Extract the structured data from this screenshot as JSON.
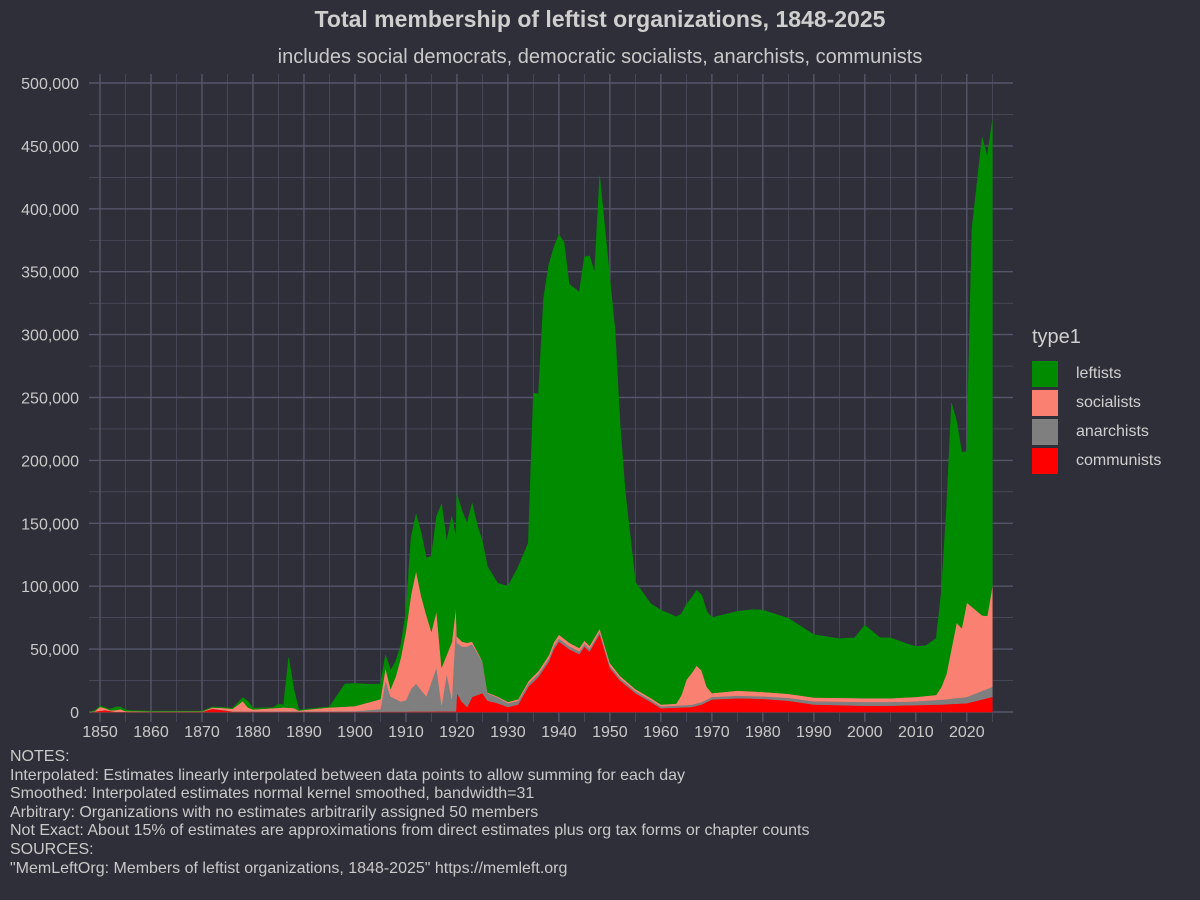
{
  "title": "Total membership of leftist organizations, 1848-2025",
  "subtitle": "includes social democrats, democratic socialists, anarchists, communists",
  "colors": {
    "background": "#2e2f38",
    "grid": "#55566a",
    "leftists": "#008b00",
    "socialists": "#fa8072",
    "anarchists": "#7f7f7f",
    "communists": "#ff0000"
  },
  "legend": {
    "title": "type1",
    "items": [
      {
        "label": "leftists",
        "color": "#008b00"
      },
      {
        "label": "socialists",
        "color": "#fa8072"
      },
      {
        "label": "anarchists",
        "color": "#7f7f7f"
      },
      {
        "label": "communists",
        "color": "#ff0000"
      }
    ]
  },
  "notes": [
    "NOTES:",
    "Interpolated: Estimates linearly interpolated between data points to allow summing for each day",
    "Smoothed: Interpolated estimates normal kernel smoothed, bandwidth=31",
    "Arbitrary: Organizations with no estimates arbitrarily assigned 50 members",
    "Not Exact: About 15% of estimates are approximations from direct estimates plus org tax forms or chapter counts",
    "SOURCES:",
    "\"MemLeftOrg: Members of leftist organizations, 1848-2025\" https://memleft.org"
  ],
  "chart_data": {
    "type": "area",
    "stacked": true,
    "title": "Total membership of leftist organizations, 1848-2025",
    "subtitle": "includes social democrats, democratic socialists, anarchists, communists",
    "xlim": [
      1848,
      2025
    ],
    "ylim": [
      0,
      500000
    ],
    "x_ticks": [
      1850,
      1860,
      1870,
      1880,
      1890,
      1900,
      1910,
      1920,
      1930,
      1940,
      1950,
      1960,
      1970,
      1980,
      1990,
      2000,
      2010,
      2020
    ],
    "y_ticks": [
      0,
      50000,
      100000,
      150000,
      200000,
      250000,
      300000,
      350000,
      400000,
      450000,
      500000
    ],
    "y_tick_labels": [
      "0",
      "50,000",
      "100,000",
      "150,000",
      "200,000",
      "250,000",
      "300,000",
      "350,000",
      "400,000",
      "450,000",
      "500,000"
    ],
    "grid": true,
    "legend_placement": "right",
    "series_order_bottom_to_top": [
      "communists",
      "anarchists",
      "socialists",
      "leftists"
    ],
    "series": [
      {
        "name": "communists",
        "points": [
          [
            1848,
            0
          ],
          [
            1850,
            1000
          ],
          [
            1851,
            1500
          ],
          [
            1852,
            800
          ],
          [
            1853,
            200
          ],
          [
            1856,
            100
          ],
          [
            1870,
            100
          ],
          [
            1872,
            2500
          ],
          [
            1874,
            1500
          ],
          [
            1876,
            300
          ],
          [
            1900,
            200
          ],
          [
            1919.8,
            500
          ],
          [
            1920,
            15000
          ],
          [
            1921,
            8000
          ],
          [
            1922,
            4000
          ],
          [
            1923,
            12000
          ],
          [
            1925,
            15000
          ],
          [
            1926,
            9000
          ],
          [
            1928,
            7000
          ],
          [
            1930,
            4000
          ],
          [
            1932,
            6000
          ],
          [
            1934,
            20000
          ],
          [
            1936,
            28000
          ],
          [
            1938,
            40000
          ],
          [
            1939,
            50000
          ],
          [
            1940,
            56000
          ],
          [
            1942,
            50000
          ],
          [
            1944,
            46000
          ],
          [
            1945,
            52000
          ],
          [
            1946,
            48000
          ],
          [
            1948,
            62000
          ],
          [
            1950,
            35000
          ],
          [
            1952,
            25000
          ],
          [
            1955,
            15000
          ],
          [
            1958,
            8000
          ],
          [
            1960,
            3000
          ],
          [
            1963,
            3500
          ],
          [
            1966,
            4000
          ],
          [
            1968,
            6000
          ],
          [
            1970,
            10000
          ],
          [
            1975,
            11000
          ],
          [
            1980,
            10500
          ],
          [
            1985,
            9000
          ],
          [
            1990,
            6000
          ],
          [
            1995,
            5500
          ],
          [
            2000,
            5000
          ],
          [
            2005,
            5000
          ],
          [
            2010,
            5500
          ],
          [
            2015,
            6000
          ],
          [
            2020,
            7000
          ],
          [
            2023,
            10000
          ],
          [
            2025,
            12000
          ]
        ]
      },
      {
        "name": "anarchists",
        "points": [
          [
            1848,
            0
          ],
          [
            1900,
            500
          ],
          [
            1905,
            2000
          ],
          [
            1906,
            25000
          ],
          [
            1907,
            12000
          ],
          [
            1909,
            8000
          ],
          [
            1910,
            9000
          ],
          [
            1911,
            18000
          ],
          [
            1912,
            22000
          ],
          [
            1914,
            12000
          ],
          [
            1916,
            35000
          ],
          [
            1917,
            5000
          ],
          [
            1918,
            30000
          ],
          [
            1919,
            10000
          ],
          [
            1919.8,
            70000
          ],
          [
            1920,
            40000
          ],
          [
            1922,
            48000
          ],
          [
            1923,
            42000
          ],
          [
            1925,
            25000
          ],
          [
            1926,
            6000
          ],
          [
            1930,
            3000
          ],
          [
            1935,
            2500
          ],
          [
            1940,
            2500
          ],
          [
            1950,
            2000
          ],
          [
            1960,
            1500
          ],
          [
            1970,
            2000
          ],
          [
            1980,
            2000
          ],
          [
            1990,
            2500
          ],
          [
            2000,
            3000
          ],
          [
            2010,
            3000
          ],
          [
            2016,
            4000
          ],
          [
            2020,
            5000
          ],
          [
            2025,
            8000
          ]
        ]
      },
      {
        "name": "socialists",
        "points": [
          [
            1848,
            0
          ],
          [
            1849,
            300
          ],
          [
            1850,
            3000
          ],
          [
            1851,
            1500
          ],
          [
            1852,
            500
          ],
          [
            1854,
            2000
          ],
          [
            1855,
            500
          ],
          [
            1860,
            200
          ],
          [
            1870,
            200
          ],
          [
            1874,
            1500
          ],
          [
            1876,
            2000
          ],
          [
            1878,
            8000
          ],
          [
            1879,
            3000
          ],
          [
            1880,
            1500
          ],
          [
            1884,
            2500
          ],
          [
            1886,
            3000
          ],
          [
            1888,
            2500
          ],
          [
            1889,
            500
          ],
          [
            1890,
            1000
          ],
          [
            1895,
            3000
          ],
          [
            1900,
            4000
          ],
          [
            1905,
            8000
          ],
          [
            1906,
            10000
          ],
          [
            1907,
            6000
          ],
          [
            1908,
            18000
          ],
          [
            1909,
            35000
          ],
          [
            1910,
            55000
          ],
          [
            1911,
            75000
          ],
          [
            1912,
            90000
          ],
          [
            1913,
            75000
          ],
          [
            1914,
            65000
          ],
          [
            1915,
            40000
          ],
          [
            1916,
            45000
          ],
          [
            1917,
            30000
          ],
          [
            1918,
            15000
          ],
          [
            1919,
            45000
          ],
          [
            1920,
            5000
          ],
          [
            1923,
            2000
          ],
          [
            1925,
            500
          ],
          [
            1930,
            1000
          ],
          [
            1935,
            2000
          ],
          [
            1940,
            3000
          ],
          [
            1950,
            2000
          ],
          [
            1955,
            1500
          ],
          [
            1960,
            1500
          ],
          [
            1963,
            1500
          ],
          [
            1964,
            8000
          ],
          [
            1965,
            20000
          ],
          [
            1966,
            25000
          ],
          [
            1967,
            30000
          ],
          [
            1968,
            25000
          ],
          [
            1969,
            10000
          ],
          [
            1970,
            3000
          ],
          [
            1975,
            4000
          ],
          [
            1980,
            3500
          ],
          [
            1990,
            3000
          ],
          [
            2000,
            3000
          ],
          [
            2005,
            3000
          ],
          [
            2010,
            3500
          ],
          [
            2014,
            4000
          ],
          [
            2015,
            10000
          ],
          [
            2016,
            20000
          ],
          [
            2017,
            40000
          ],
          [
            2018,
            60000
          ],
          [
            2019,
            55000
          ],
          [
            2020,
            75000
          ],
          [
            2021,
            70000
          ],
          [
            2022,
            65000
          ],
          [
            2023,
            60000
          ],
          [
            2024,
            58000
          ],
          [
            2025,
            80000
          ]
        ]
      },
      {
        "name": "leftists",
        "points": [
          [
            1848,
            0
          ],
          [
            1850,
            1000
          ],
          [
            1851,
            500
          ],
          [
            1852,
            1000
          ],
          [
            1853,
            2500
          ],
          [
            1856,
            500
          ],
          [
            1860,
            300
          ],
          [
            1870,
            200
          ],
          [
            1872,
            500
          ],
          [
            1874,
            500
          ],
          [
            1876,
            500
          ],
          [
            1878,
            3000
          ],
          [
            1879,
            5000
          ],
          [
            1880,
            1000
          ],
          [
            1884,
            500
          ],
          [
            1885,
            3000
          ],
          [
            1886,
            2000
          ],
          [
            1887,
            40000
          ],
          [
            1888,
            15000
          ],
          [
            1889,
            500
          ],
          [
            1890,
            500
          ],
          [
            1895,
            500
          ],
          [
            1897,
            12000
          ],
          [
            1898,
            18000
          ],
          [
            1900,
            18000
          ],
          [
            1903,
            14000
          ],
          [
            1905,
            12000
          ],
          [
            1906,
            10000
          ],
          [
            1907,
            15000
          ],
          [
            1908,
            12000
          ],
          [
            1909,
            10000
          ],
          [
            1910,
            15000
          ],
          [
            1911,
            45000
          ],
          [
            1912,
            45000
          ],
          [
            1913,
            50000
          ],
          [
            1914,
            45000
          ],
          [
            1915,
            60000
          ],
          [
            1916,
            75000
          ],
          [
            1917,
            130000
          ],
          [
            1918,
            90000
          ],
          [
            1919,
            100000
          ],
          [
            1919.8,
            55000
          ],
          [
            1920,
            113000
          ],
          [
            1922,
            95000
          ],
          [
            1923,
            110000
          ],
          [
            1924,
            100000
          ],
          [
            1925,
            95000
          ],
          [
            1926,
            100000
          ],
          [
            1928,
            90000
          ],
          [
            1930,
            92000
          ],
          [
            1932,
            105000
          ],
          [
            1934,
            110000
          ],
          [
            1935,
            225000
          ],
          [
            1936,
            220000
          ],
          [
            1937,
            290000
          ],
          [
            1938,
            310000
          ],
          [
            1940,
            318000
          ],
          [
            1941,
            315000
          ],
          [
            1942,
            285000
          ],
          [
            1944,
            283000
          ],
          [
            1945,
            305000
          ],
          [
            1946,
            310000
          ],
          [
            1947,
            290000
          ],
          [
            1948,
            360000
          ],
          [
            1950,
            305000
          ],
          [
            1951,
            270000
          ],
          [
            1952,
            200000
          ],
          [
            1953,
            150000
          ],
          [
            1955,
            85000
          ],
          [
            1958,
            75000
          ],
          [
            1960,
            75000
          ],
          [
            1963,
            69000
          ],
          [
            1965,
            60000
          ],
          [
            1968,
            60000
          ],
          [
            1970,
            60000
          ],
          [
            1975,
            63000
          ],
          [
            1978,
            65000
          ],
          [
            1980,
            65000
          ],
          [
            1985,
            60000
          ],
          [
            1990,
            50000
          ],
          [
            1995,
            47000
          ],
          [
            1998,
            48000
          ],
          [
            2000,
            58000
          ],
          [
            2003,
            48000
          ],
          [
            2005,
            48000
          ],
          [
            2008,
            43000
          ],
          [
            2010,
            40000
          ],
          [
            2012,
            40000
          ],
          [
            2014,
            45000
          ],
          [
            2015,
            75000
          ],
          [
            2016,
            130000
          ],
          [
            2017,
            195000
          ],
          [
            2018,
            160000
          ],
          [
            2019,
            140000
          ],
          [
            2020,
            120000
          ],
          [
            2021,
            300000
          ],
          [
            2022,
            340000
          ],
          [
            2023,
            380000
          ],
          [
            2024,
            365000
          ],
          [
            2025,
            370000
          ]
        ]
      }
    ]
  }
}
